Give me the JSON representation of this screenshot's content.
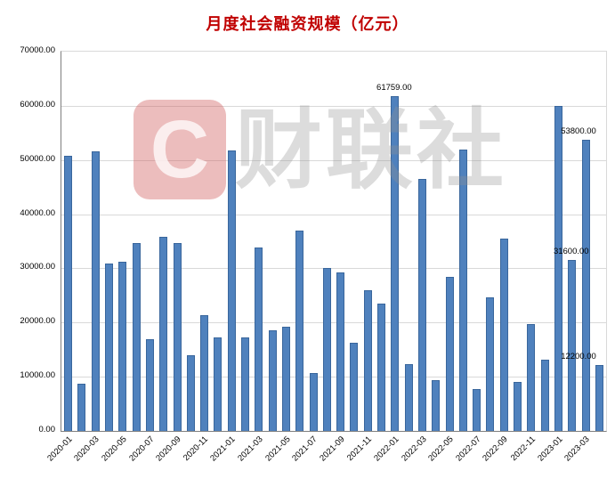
{
  "watermark": {
    "logo_letter": "C",
    "text": "财联社"
  },
  "chart_data": {
    "type": "bar",
    "title": "月度社会融资规模（亿元）",
    "xlabel": "",
    "ylabel": "",
    "ylim": [
      0,
      70000
    ],
    "ytick_step": 10000,
    "ytick_labels": [
      "0.00",
      "10000.00",
      "20000.00",
      "30000.00",
      "40000.00",
      "50000.00",
      "60000.00",
      "70000.00"
    ],
    "grid": true,
    "legend": "none",
    "bar_color": "#4F81BD",
    "bar_border_color": "#39669C",
    "title_color": "#C00000",
    "categories": [
      "2020-01",
      "2020-02",
      "2020-03",
      "2020-04",
      "2020-05",
      "2020-06",
      "2020-07",
      "2020-08",
      "2020-09",
      "2020-10",
      "2020-11",
      "2020-12",
      "2021-01",
      "2021-02",
      "2021-03",
      "2021-04",
      "2021-05",
      "2021-06",
      "2021-07",
      "2021-08",
      "2021-09",
      "2021-10",
      "2021-11",
      "2021-12",
      "2022-01",
      "2022-02",
      "2022-03",
      "2022-04",
      "2022-05",
      "2022-06",
      "2022-07",
      "2022-08",
      "2022-09",
      "2022-10",
      "2022-11",
      "2022-12",
      "2023-01",
      "2023-02",
      "2023-03",
      "2023-04"
    ],
    "values": [
      50700,
      8700,
      51600,
      30900,
      31200,
      34600,
      16900,
      35800,
      34700,
      13900,
      21400,
      17200,
      51700,
      17300,
      33800,
      18600,
      19200,
      36900,
      10700,
      30000,
      29200,
      16200,
      26000,
      23500,
      61759,
      12300,
      46500,
      9300,
      28500,
      51900,
      7800,
      24700,
      35500,
      9100,
      19800,
      13100,
      60000,
      31600,
      53800,
      12200
    ],
    "xtick_labels": [
      "2020-01",
      "2020-03",
      "2020-05",
      "2020-07",
      "2020-09",
      "2020-11",
      "2021-01",
      "2021-03",
      "2021-05",
      "2021-07",
      "2021-09",
      "2021-11",
      "2022-01",
      "2022-03",
      "2022-05",
      "2022-07",
      "2022-09",
      "2022-11",
      "2023-01",
      "2023-03"
    ],
    "annotations": [
      {
        "index": 24,
        "text": "61759.00"
      },
      {
        "index": 37,
        "text": "31600.00"
      },
      {
        "index": 38,
        "text": "53800.00"
      },
      {
        "index": 39,
        "text": "12200.00"
      }
    ]
  }
}
